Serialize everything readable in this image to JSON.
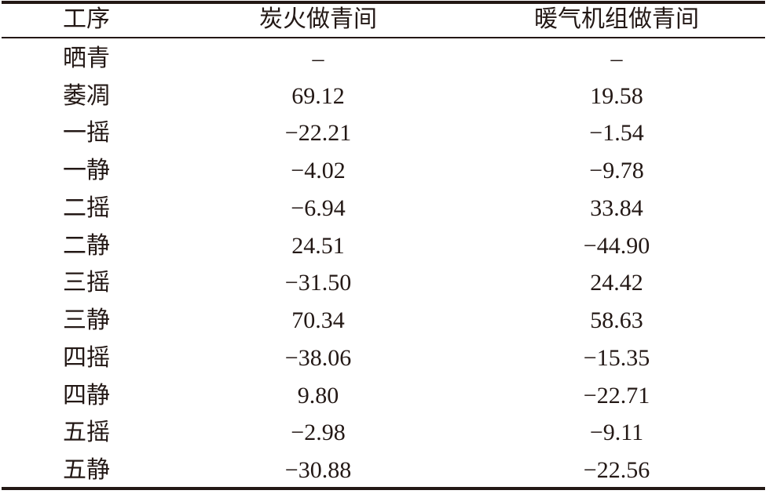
{
  "table": {
    "header": [
      "工序",
      "炭火做青间",
      "暖气机组做青间"
    ],
    "rows": [
      [
        "晒青",
        "–",
        "–"
      ],
      [
        "萎凋",
        "69.12",
        "19.58"
      ],
      [
        "一摇",
        "−22.21",
        "−1.54"
      ],
      [
        "一静",
        "−4.02",
        "−9.78"
      ],
      [
        "二摇",
        "−6.94",
        "33.84"
      ],
      [
        "二静",
        "24.51",
        "−44.90"
      ],
      [
        "三摇",
        "−31.50",
        "24.42"
      ],
      [
        "三静",
        "70.34",
        "58.63"
      ],
      [
        "四摇",
        "−38.06",
        "−15.35"
      ],
      [
        "四静",
        "9.80",
        "−22.71"
      ],
      [
        "五摇",
        "−2.98",
        "−9.11"
      ],
      [
        "五静",
        "−30.88",
        "−22.56"
      ]
    ]
  }
}
